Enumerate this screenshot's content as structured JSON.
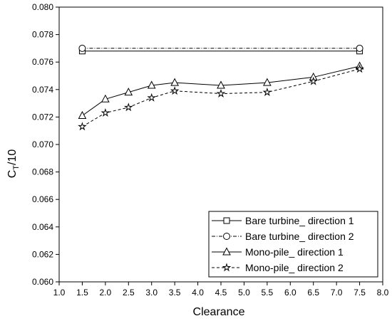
{
  "chart_data": {
    "type": "line",
    "title": "",
    "xlabel": "Clearance",
    "ylabel_main": "C",
    "ylabel_sub": "T",
    "ylabel_tail": "/10",
    "xlim": [
      1.0,
      8.0
    ],
    "ylim": [
      0.06,
      0.08
    ],
    "x_ticks": [
      1.0,
      1.5,
      2.0,
      2.5,
      3.0,
      3.5,
      4.0,
      4.5,
      5.0,
      5.5,
      6.0,
      6.5,
      7.0,
      7.5,
      8.0
    ],
    "x_tick_labels": [
      "1.0",
      "1.5",
      "2.0",
      "2.5",
      "3.0",
      "3.5",
      "4.0",
      "4.5",
      "5.0",
      "5.5",
      "6.0",
      "6.5",
      "7.0",
      "7.5",
      "8.0"
    ],
    "y_ticks": [
      0.06,
      0.062,
      0.064,
      0.066,
      0.068,
      0.07,
      0.072,
      0.074,
      0.076,
      0.078,
      0.08
    ],
    "y_tick_labels": [
      "0.060",
      "0.062",
      "0.064",
      "0.066",
      "0.068",
      "0.070",
      "0.072",
      "0.074",
      "0.076",
      "0.078",
      "0.080"
    ],
    "grid": false,
    "legend_position": "bottom-right",
    "series": [
      {
        "name": "Bare turbine_ direction 1",
        "marker": "square",
        "line_style": "solid",
        "x": [
          1.5,
          7.5
        ],
        "y": [
          0.0768,
          0.0768
        ]
      },
      {
        "name": "Bare turbine_ direction 2",
        "marker": "circle",
        "line_style": "dash-dot",
        "x": [
          1.5,
          7.5
        ],
        "y": [
          0.077,
          0.077
        ]
      },
      {
        "name": "Mono-pile_ direction 1",
        "marker": "triangle",
        "line_style": "solid",
        "x": [
          1.5,
          2.0,
          2.5,
          3.0,
          3.5,
          4.5,
          5.5,
          6.5,
          7.5
        ],
        "y": [
          0.0721,
          0.0733,
          0.0738,
          0.0743,
          0.0745,
          0.0743,
          0.0745,
          0.0749,
          0.0757
        ]
      },
      {
        "name": "Mono-pile_ direction 2",
        "marker": "star",
        "line_style": "dashed",
        "x": [
          1.5,
          2.0,
          2.5,
          3.0,
          3.5,
          4.5,
          5.5,
          6.5,
          7.5
        ],
        "y": [
          0.0713,
          0.0723,
          0.0727,
          0.0734,
          0.0739,
          0.0737,
          0.0738,
          0.0746,
          0.0755
        ]
      }
    ]
  }
}
